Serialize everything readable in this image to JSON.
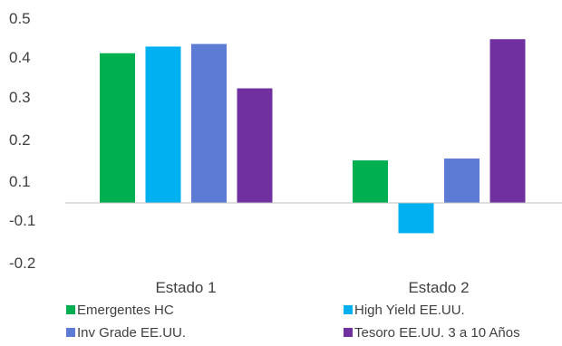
{
  "chart_data": {
    "type": "bar",
    "categories": [
      "Estado 1",
      "Estado 2"
    ],
    "series": [
      {
        "name": "Emergentes HC",
        "color": "#00B050",
        "values": [
          0.405,
          0.115
        ]
      },
      {
        "name": "High Yield EE.UU.",
        "color": "#00B0F0",
        "values": [
          0.423,
          -0.082
        ]
      },
      {
        "name": "Inv Grade EE.UU.",
        "color": "#5B7BD5",
        "values": [
          0.43,
          0.12
        ]
      },
      {
        "name": "Tesoro EE.UU. 3 a 10 Años",
        "color": "#7030A0",
        "values": [
          0.31,
          0.443
        ]
      }
    ],
    "y_tick_labels": [
      "0.5",
      "0.4",
      "0.3",
      "0.2",
      "0.1",
      "-0.1",
      "-0.2"
    ],
    "grid": false,
    "legend_position": "bottom"
  }
}
